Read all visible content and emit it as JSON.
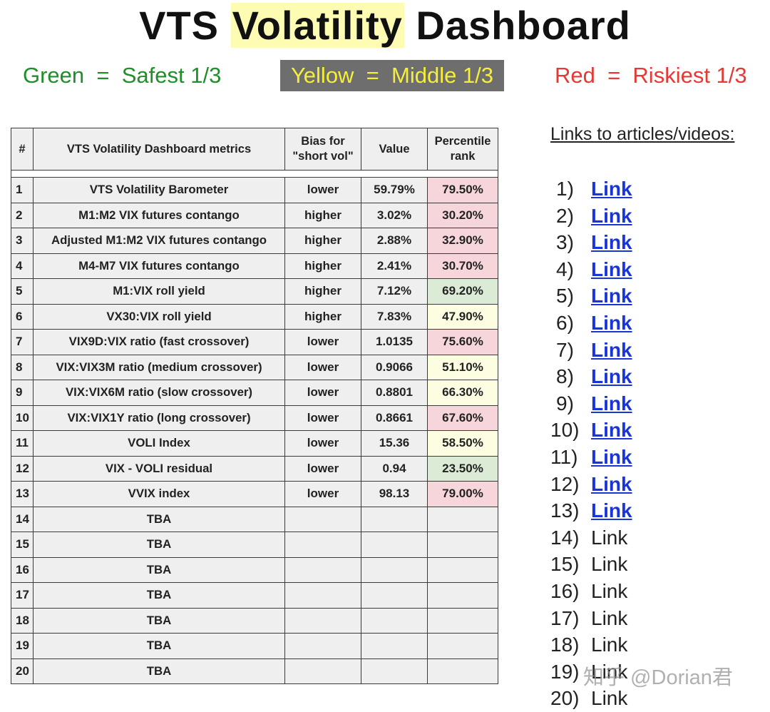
{
  "title": {
    "part1": "VTS ",
    "highlight": "Volatility",
    "part2": " Dashboard"
  },
  "legend": {
    "green": "Green  =  Safest 1/3",
    "yellow": "Yellow  =  Middle 1/3",
    "red": "Red  =  Riskiest 1/3"
  },
  "colors": {
    "green_text": "#1e8f2a",
    "yellow_text": "#f5ee3a",
    "yellow_bg": "#6e6e6e",
    "red_text": "#e53935",
    "pct_red_bg": "#f6d6da",
    "pct_yellow_bg": "#fdfde2",
    "pct_green_bg": "#dcebd6",
    "link": "#1a35d6"
  },
  "table": {
    "headers": [
      "#",
      "VTS Volatility Dashboard metrics",
      "Bias for \"short vol\"",
      "Value",
      "Percentile rank"
    ],
    "rows": [
      {
        "num": "1",
        "metric": "VTS Volatility Barometer",
        "bias": "lower",
        "value": "59.79%",
        "pct": "79.50%",
        "zone": "red"
      },
      {
        "num": "2",
        "metric": "M1:M2 VIX futures contango",
        "bias": "higher",
        "value": "3.02%",
        "pct": "30.20%",
        "zone": "red"
      },
      {
        "num": "3",
        "metric": "Adjusted M1:M2 VIX futures contango",
        "bias": "higher",
        "value": "2.88%",
        "pct": "32.90%",
        "zone": "red"
      },
      {
        "num": "4",
        "metric": "M4-M7 VIX futures contango",
        "bias": "higher",
        "value": "2.41%",
        "pct": "30.70%",
        "zone": "red"
      },
      {
        "num": "5",
        "metric": "M1:VIX roll yield",
        "bias": "higher",
        "value": "7.12%",
        "pct": "69.20%",
        "zone": "green"
      },
      {
        "num": "6",
        "metric": "VX30:VIX roll yield",
        "bias": "higher",
        "value": "7.83%",
        "pct": "47.90%",
        "zone": "yellow"
      },
      {
        "num": "7",
        "metric": "VIX9D:VIX ratio  (fast crossover)",
        "bias": "lower",
        "value": "1.0135",
        "pct": "75.60%",
        "zone": "red"
      },
      {
        "num": "8",
        "metric": "VIX:VIX3M ratio  (medium crossover)",
        "bias": "lower",
        "value": "0.9066",
        "pct": "51.10%",
        "zone": "yellow"
      },
      {
        "num": "9",
        "metric": "VIX:VIX6M ratio  (slow crossover)",
        "bias": "lower",
        "value": "0.8801",
        "pct": "66.30%",
        "zone": "yellow"
      },
      {
        "num": "10",
        "metric": "VIX:VIX1Y ratio  (long crossover)",
        "bias": "lower",
        "value": "0.8661",
        "pct": "67.60%",
        "zone": "red"
      },
      {
        "num": "11",
        "metric": "VOLI Index",
        "bias": "lower",
        "value": "15.36",
        "pct": "58.50%",
        "zone": "yellow"
      },
      {
        "num": "12",
        "metric": "VIX - VOLI residual",
        "bias": "lower",
        "value": "0.94",
        "pct": "23.50%",
        "zone": "green"
      },
      {
        "num": "13",
        "metric": "VVIX index",
        "bias": "lower",
        "value": "98.13",
        "pct": "79.00%",
        "zone": "red"
      },
      {
        "num": "14",
        "metric": "TBA",
        "bias": "",
        "value": "",
        "pct": "",
        "zone": ""
      },
      {
        "num": "15",
        "metric": "TBA",
        "bias": "",
        "value": "",
        "pct": "",
        "zone": ""
      },
      {
        "num": "16",
        "metric": "TBA",
        "bias": "",
        "value": "",
        "pct": "",
        "zone": ""
      },
      {
        "num": "17",
        "metric": "TBA",
        "bias": "",
        "value": "",
        "pct": "",
        "zone": ""
      },
      {
        "num": "18",
        "metric": "TBA",
        "bias": "",
        "value": "",
        "pct": "",
        "zone": ""
      },
      {
        "num": "19",
        "metric": "TBA",
        "bias": "",
        "value": "",
        "pct": "",
        "zone": ""
      },
      {
        "num": "20",
        "metric": "TBA",
        "bias": "",
        "value": "",
        "pct": "",
        "zone": ""
      }
    ]
  },
  "links": {
    "heading": "Links to articles/videos:",
    "items": [
      {
        "index": "1)",
        "label": "Link",
        "active": true
      },
      {
        "index": "2)",
        "label": "Link",
        "active": true
      },
      {
        "index": "3)",
        "label": "Link",
        "active": true
      },
      {
        "index": "4)",
        "label": "Link",
        "active": true
      },
      {
        "index": "5)",
        "label": "Link",
        "active": true
      },
      {
        "index": "6)",
        "label": "Link",
        "active": true
      },
      {
        "index": "7)",
        "label": "Link",
        "active": true
      },
      {
        "index": "8)",
        "label": "Link",
        "active": true
      },
      {
        "index": "9)",
        "label": "Link",
        "active": true
      },
      {
        "index": "10)",
        "label": "Link",
        "active": true
      },
      {
        "index": "11)",
        "label": "Link",
        "active": true
      },
      {
        "index": "12)",
        "label": "Link",
        "active": true
      },
      {
        "index": "13)",
        "label": "Link",
        "active": true
      },
      {
        "index": "14)",
        "label": "Link",
        "active": false
      },
      {
        "index": "15)",
        "label": "Link",
        "active": false
      },
      {
        "index": "16)",
        "label": "Link",
        "active": false
      },
      {
        "index": "17)",
        "label": "Link",
        "active": false
      },
      {
        "index": "18)",
        "label": "Link",
        "active": false
      },
      {
        "index": "19)",
        "label": "Link",
        "active": false
      },
      {
        "index": "20)",
        "label": "Link",
        "active": false
      }
    ]
  },
  "watermark": "知乎 @Dorian君"
}
